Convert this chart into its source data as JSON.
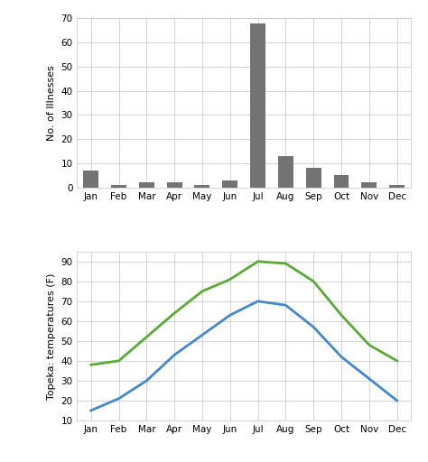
{
  "months": [
    "Jan",
    "Feb",
    "Mar",
    "Apr",
    "May",
    "Jun",
    "Jul",
    "Aug",
    "Sep",
    "Oct",
    "Nov",
    "Dec"
  ],
  "illnesses": [
    7,
    1,
    2,
    2,
    1,
    3,
    68,
    13,
    8,
    5,
    2,
    1
  ],
  "bar_color": "#737373",
  "temp_high": [
    38,
    40,
    52,
    64,
    75,
    81,
    90,
    89,
    80,
    63,
    48,
    40
  ],
  "temp_low": [
    15,
    21,
    30,
    43,
    53,
    63,
    70,
    68,
    57,
    42,
    31,
    20
  ],
  "high_color": "#5aaa35",
  "low_color": "#4488cc",
  "bar_ylabel": "No. of Illnesses",
  "line_ylabel": "Topeka: temperatures (F)",
  "bar_ylim": [
    0,
    70
  ],
  "bar_yticks": [
    0,
    10,
    20,
    30,
    40,
    50,
    60,
    70
  ],
  "line_ylim": [
    10,
    95
  ],
  "line_yticks": [
    10,
    20,
    30,
    40,
    50,
    60,
    70,
    80,
    90
  ],
  "background_color": "#ffffff",
  "plot_bg_color": "#ffffff",
  "grid_color": "#cccccc",
  "line_width": 2.0,
  "tick_fontsize": 7.5,
  "ylabel_fontsize": 8
}
